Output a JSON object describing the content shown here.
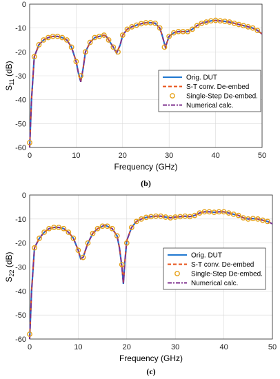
{
  "chart_data": [
    {
      "type": "line",
      "caption": "(b)",
      "xlabel": "Frequency (GHz)",
      "ylabel_main": "S",
      "ylabel_sub": "11",
      "ylabel_unit": " (dB)",
      "xlim": [
        0,
        50
      ],
      "ylim": [
        -60,
        0
      ],
      "xticks": [
        "0",
        "10",
        "20",
        "30",
        "40",
        "50"
      ],
      "yticks": [
        "0",
        "-10",
        "-20",
        "-30",
        "-40",
        "-50",
        "-60"
      ],
      "grid": true,
      "legend_position": "right",
      "legend": [
        {
          "label": "Orig. DUT",
          "style": "solid",
          "color": "#1f77d0"
        },
        {
          "label": "S-T conv. De-embed",
          "style": "dashed",
          "color": "#e8531a"
        },
        {
          "label": "Single-Step De-embed.",
          "style": "marker",
          "color": "#e6a21a"
        },
        {
          "label": "Numerical calc.",
          "style": "dashdot",
          "color": "#7e2f8e"
        }
      ],
      "curve": {
        "x": [
          0,
          0.4,
          1,
          2,
          3,
          4,
          5,
          6,
          7,
          8,
          9,
          10,
          10.5,
          11,
          11.5,
          12,
          13,
          14,
          15,
          16,
          16.5,
          17,
          18,
          18.7,
          19.5,
          20,
          21,
          22,
          23,
          24,
          25,
          26,
          27,
          28,
          28.5,
          29.2,
          30,
          31,
          32,
          33,
          34,
          35,
          36,
          37,
          38,
          39,
          40,
          41,
          42,
          43,
          44,
          45,
          46,
          47,
          48,
          49,
          50
        ],
        "y": [
          -60,
          -40,
          -22,
          -17,
          -15,
          -14,
          -13.5,
          -13.5,
          -14,
          -15,
          -18,
          -24,
          -29,
          -32.5,
          -27,
          -20,
          -16,
          -14,
          -13.5,
          -13,
          -13.5,
          -15,
          -18,
          -20.5,
          -17,
          -13,
          -10.5,
          -9.5,
          -8.8,
          -8.2,
          -7.8,
          -7.8,
          -8,
          -10,
          -13,
          -18,
          -13.5,
          -12,
          -11.5,
          -11.5,
          -11.5,
          -10.5,
          -9,
          -8,
          -7.5,
          -7,
          -6.8,
          -7,
          -7.2,
          -7.5,
          -8,
          -8.5,
          -9,
          -9.5,
          -10,
          -11,
          -12.5
        ]
      },
      "markers": {
        "x": [
          0,
          1,
          2,
          3,
          4,
          5,
          6,
          7,
          8,
          9,
          10,
          11,
          12,
          13,
          14,
          15,
          16,
          17,
          18,
          19,
          20,
          21,
          22,
          23,
          24,
          25,
          26,
          27,
          28,
          29,
          30,
          31,
          32,
          33,
          34,
          35,
          36,
          37,
          38,
          39,
          40,
          41,
          42,
          43,
          44,
          45,
          46,
          47,
          48,
          49
        ],
        "y": [
          -58,
          -22,
          -17,
          -15,
          -14,
          -13.5,
          -13.5,
          -14,
          -15,
          -18,
          -24,
          -30,
          -20,
          -16,
          -14,
          -13.5,
          -13,
          -15,
          -18,
          -20,
          -13,
          -10.5,
          -9.5,
          -8.8,
          -8.2,
          -7.8,
          -7.8,
          -8,
          -10,
          -18,
          -13.5,
          -12,
          -11.5,
          -11.5,
          -11.5,
          -10.5,
          -9,
          -8,
          -7.5,
          -7,
          -6.8,
          -7,
          -7.2,
          -7.5,
          -8,
          -8.5,
          -9,
          -9.5,
          -10,
          -11
        ]
      }
    },
    {
      "type": "line",
      "caption": "(c)",
      "xlabel": "Frequency (GHz)",
      "ylabel_main": "S",
      "ylabel_sub": "22",
      "ylabel_unit": " (dB)",
      "xlim": [
        0,
        50
      ],
      "ylim": [
        -60,
        0
      ],
      "xticks": [
        "0",
        "10",
        "20",
        "30",
        "40",
        "50"
      ],
      "yticks": [
        "0",
        "-10",
        "-20",
        "-30",
        "-40",
        "-50",
        "-60"
      ],
      "grid": true,
      "legend_position": "right",
      "legend": [
        {
          "label": "Orig. DUT",
          "style": "solid",
          "color": "#1f77d0"
        },
        {
          "label": "S-T conv. De-embed",
          "style": "dashed",
          "color": "#e8531a"
        },
        {
          "label": "Single-Step De-embed.",
          "style": "marker",
          "color": "#e6a21a"
        },
        {
          "label": "Numerical calc.",
          "style": "dashdot",
          "color": "#7e2f8e"
        }
      ],
      "curve": {
        "x": [
          0,
          0.4,
          1,
          2,
          3,
          4,
          5,
          6,
          7,
          8,
          9,
          10,
          10.5,
          11,
          12,
          13,
          14,
          15,
          15.5,
          16,
          17,
          18,
          18.5,
          19,
          19.3,
          19.6,
          20,
          21,
          22,
          23,
          24,
          25,
          26,
          27,
          28,
          29,
          30,
          31,
          32,
          33,
          34,
          35,
          36,
          37,
          38,
          39,
          40,
          41,
          42,
          43,
          44,
          45,
          46,
          47,
          48,
          49,
          50
        ],
        "y": [
          -60,
          -40,
          -22,
          -18,
          -15.5,
          -14,
          -13.5,
          -13.5,
          -14,
          -15.5,
          -18,
          -23,
          -26.5,
          -26,
          -20,
          -16,
          -14,
          -13,
          -12.5,
          -13,
          -14,
          -17,
          -22,
          -30,
          -37,
          -28,
          -19,
          -13.5,
          -11,
          -10,
          -9.3,
          -9,
          -8.8,
          -8.8,
          -9.2,
          -9.5,
          -9.2,
          -9,
          -8.8,
          -9,
          -8.5,
          -7.5,
          -7,
          -7,
          -7.2,
          -7,
          -7,
          -7.5,
          -8,
          -8.5,
          -9.5,
          -10,
          -9.8,
          -10,
          -10.5,
          -11,
          -12
        ]
      },
      "markers": {
        "x": [
          0,
          1,
          2,
          3,
          4,
          5,
          6,
          7,
          8,
          9,
          10,
          11,
          12,
          13,
          14,
          15,
          16,
          17,
          18,
          19,
          20,
          21,
          22,
          23,
          24,
          25,
          26,
          27,
          28,
          29,
          30,
          31,
          32,
          33,
          34,
          35,
          36,
          37,
          38,
          39,
          40,
          41,
          42,
          43,
          44,
          45,
          46,
          47,
          48,
          49
        ],
        "y": [
          -58,
          -22,
          -18,
          -15.5,
          -14,
          -13.5,
          -13.5,
          -14,
          -15.5,
          -18,
          -23,
          -26,
          -20,
          -16,
          -14,
          -13,
          -13,
          -14,
          -17,
          -29,
          -20,
          -13.5,
          -11,
          -10,
          -9.3,
          -9,
          -8.8,
          -8.8,
          -9.2,
          -9.5,
          -9.2,
          -9,
          -8.8,
          -9,
          -8.5,
          -7.5,
          -7,
          -7,
          -7.2,
          -7,
          -7,
          -7.5,
          -8,
          -8.5,
          -9.5,
          -10,
          -9.8,
          -10,
          -10.5,
          -11
        ]
      }
    }
  ]
}
